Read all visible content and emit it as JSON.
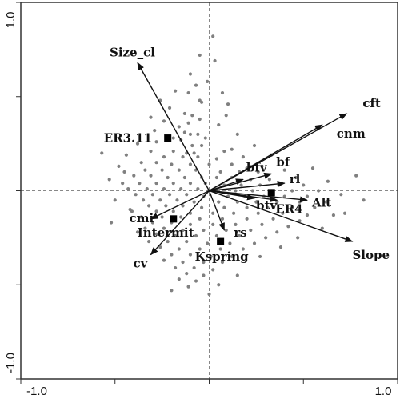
{
  "chart_data": {
    "type": "scatter",
    "xlim": [
      -1.0,
      1.0
    ],
    "ylim": [
      -1.0,
      1.0
    ],
    "x_ticks": [
      "-1.0",
      "1.0"
    ],
    "y_ticks": [
      "1.0",
      "-1.0"
    ],
    "grid": false,
    "zero_lines": true,
    "colors": {
      "points": "#808080",
      "arrows": "#111111",
      "axes": "#333333",
      "zero_lines": "#888888"
    },
    "vectors": [
      {
        "label": "Size_cl",
        "x": -0.38,
        "y": 0.68
      },
      {
        "label": "cft",
        "x": 0.73,
        "y": 0.41
      },
      {
        "label": "cnm",
        "x": 0.6,
        "y": 0.35
      },
      {
        "label": "bf",
        "x": 0.33,
        "y": 0.09
      },
      {
        "label": "bfv",
        "x": 0.18,
        "y": 0.06
      },
      {
        "label": "rl",
        "x": 0.4,
        "y": 0.04
      },
      {
        "label": "Alt",
        "x": 0.52,
        "y": -0.05
      },
      {
        "label": "btv",
        "x": 0.24,
        "y": -0.04
      },
      {
        "label": "ER4",
        "x": 0.36,
        "y": -0.05
      },
      {
        "label": "Slope",
        "x": 0.76,
        "y": -0.27
      },
      {
        "label": "rs",
        "x": 0.08,
        "y": -0.21
      },
      {
        "label": "cmi",
        "x": -0.31,
        "y": -0.15
      },
      {
        "label": "cv",
        "x": -0.31,
        "y": -0.34
      }
    ],
    "centroids": [
      {
        "label": "ER3.11",
        "x": -0.22,
        "y": 0.28
      },
      {
        "label": "Intermit",
        "x": -0.19,
        "y": -0.15
      },
      {
        "label": "Kspring",
        "x": 0.06,
        "y": -0.27
      },
      {
        "label": "ER4",
        "x": 0.33,
        "y": -0.01
      }
    ],
    "points": [
      [
        0.02,
        0.82
      ],
      [
        -0.05,
        0.72
      ],
      [
        0.03,
        0.69
      ],
      [
        -0.1,
        0.62
      ],
      [
        -0.18,
        0.53
      ],
      [
        -0.11,
        0.52
      ],
      [
        -0.05,
        0.48
      ],
      [
        -0.04,
        0.47
      ],
      [
        -0.13,
        0.41
      ],
      [
        -0.09,
        0.4
      ],
      [
        0.09,
        0.4
      ],
      [
        -0.05,
        0.38
      ],
      [
        -0.24,
        0.37
      ],
      [
        -0.11,
        0.36
      ],
      [
        -0.16,
        0.34
      ],
      [
        0.05,
        0.35
      ],
      [
        -0.13,
        0.31
      ],
      [
        -0.1,
        0.3
      ],
      [
        -0.06,
        0.3
      ],
      [
        -0.19,
        0.28
      ],
      [
        -0.02,
        0.28
      ],
      [
        -0.15,
        0.27
      ],
      [
        -0.28,
        0.26
      ],
      [
        -0.09,
        0.24
      ],
      [
        -0.04,
        0.24
      ],
      [
        0.12,
        0.22
      ],
      [
        -0.31,
        0.21
      ],
      [
        -0.19,
        0.21
      ],
      [
        -0.12,
        0.2
      ],
      [
        -0.08,
        0.2
      ],
      [
        0.08,
        0.21
      ],
      [
        -0.24,
        0.18
      ],
      [
        -0.14,
        0.18
      ],
      [
        -0.06,
        0.18
      ],
      [
        0.04,
        0.17
      ],
      [
        0.18,
        0.18
      ],
      [
        -0.36,
        0.15
      ],
      [
        -0.28,
        0.15
      ],
      [
        -0.2,
        0.14
      ],
      [
        -0.1,
        0.14
      ],
      [
        0.0,
        0.14
      ],
      [
        0.12,
        0.14
      ],
      [
        0.28,
        0.13
      ],
      [
        -0.34,
        0.11
      ],
      [
        -0.25,
        0.11
      ],
      [
        -0.16,
        0.11
      ],
      [
        -0.07,
        0.11
      ],
      [
        0.06,
        0.1
      ],
      [
        0.16,
        0.1
      ],
      [
        0.26,
        0.1
      ],
      [
        0.4,
        0.11
      ],
      [
        -0.4,
        0.08
      ],
      [
        -0.31,
        0.08
      ],
      [
        -0.22,
        0.07
      ],
      [
        -0.13,
        0.07
      ],
      [
        -0.04,
        0.07
      ],
      [
        0.04,
        0.07
      ],
      [
        0.12,
        0.07
      ],
      [
        0.22,
        0.06
      ],
      [
        0.32,
        0.06
      ],
      [
        0.46,
        0.07
      ],
      [
        -0.46,
        0.04
      ],
      [
        -0.37,
        0.04
      ],
      [
        -0.28,
        0.04
      ],
      [
        -0.19,
        0.04
      ],
      [
        -0.1,
        0.04
      ],
      [
        -0.02,
        0.04
      ],
      [
        0.08,
        0.03
      ],
      [
        0.17,
        0.03
      ],
      [
        0.27,
        0.03
      ],
      [
        0.37,
        0.03
      ],
      [
        0.5,
        0.03
      ],
      [
        -0.43,
        0.01
      ],
      [
        -0.33,
        0.01
      ],
      [
        -0.24,
        0.01
      ],
      [
        -0.15,
        0.01
      ],
      [
        -0.06,
        0.01
      ],
      [
        0.04,
        0.0
      ],
      [
        0.14,
        0.0
      ],
      [
        0.23,
        0.0
      ],
      [
        0.33,
        0.0
      ],
      [
        0.44,
        0.0
      ],
      [
        0.58,
        0.0
      ],
      [
        -0.39,
        -0.02
      ],
      [
        -0.3,
        -0.02
      ],
      [
        -0.21,
        -0.02
      ],
      [
        -0.12,
        -0.02
      ],
      [
        -0.03,
        -0.03
      ],
      [
        0.1,
        -0.03
      ],
      [
        0.19,
        -0.03
      ],
      [
        0.29,
        -0.03
      ],
      [
        0.4,
        -0.03
      ],
      [
        0.52,
        -0.03
      ],
      [
        -0.35,
        -0.05
      ],
      [
        -0.26,
        -0.05
      ],
      [
        -0.17,
        -0.05
      ],
      [
        -0.08,
        -0.06
      ],
      [
        0.05,
        -0.06
      ],
      [
        0.15,
        -0.06
      ],
      [
        0.25,
        -0.06
      ],
      [
        0.36,
        -0.06
      ],
      [
        0.48,
        -0.06
      ],
      [
        0.62,
        -0.06
      ],
      [
        -0.32,
        -0.08
      ],
      [
        -0.23,
        -0.08
      ],
      [
        -0.14,
        -0.08
      ],
      [
        -0.04,
        -0.09
      ],
      [
        0.08,
        -0.09
      ],
      [
        0.2,
        -0.09
      ],
      [
        0.31,
        -0.09
      ],
      [
        0.44,
        -0.09
      ],
      [
        0.56,
        -0.09
      ],
      [
        -0.41,
        -0.11
      ],
      [
        -0.28,
        -0.11
      ],
      [
        -0.19,
        -0.11
      ],
      [
        -0.1,
        -0.12
      ],
      [
        0.02,
        -0.12
      ],
      [
        0.13,
        -0.12
      ],
      [
        0.26,
        -0.12
      ],
      [
        0.39,
        -0.12
      ],
      [
        0.52,
        -0.13
      ],
      [
        0.66,
        -0.13
      ],
      [
        -0.36,
        -0.14
      ],
      [
        -0.25,
        -0.14
      ],
      [
        -0.15,
        -0.14
      ],
      [
        -0.05,
        -0.15
      ],
      [
        0.07,
        -0.15
      ],
      [
        0.2,
        -0.15
      ],
      [
        0.34,
        -0.15
      ],
      [
        0.48,
        -0.16
      ],
      [
        -0.3,
        -0.17
      ],
      [
        -0.2,
        -0.17
      ],
      [
        -0.1,
        -0.18
      ],
      [
        0.02,
        -0.18
      ],
      [
        0.14,
        -0.18
      ],
      [
        0.28,
        -0.18
      ],
      [
        0.42,
        -0.19
      ],
      [
        -0.34,
        -0.2
      ],
      [
        -0.24,
        -0.2
      ],
      [
        -0.14,
        -0.21
      ],
      [
        -0.03,
        -0.21
      ],
      [
        0.09,
        -0.21
      ],
      [
        0.22,
        -0.21
      ],
      [
        0.36,
        -0.22
      ],
      [
        -0.28,
        -0.23
      ],
      [
        -0.18,
        -0.24
      ],
      [
        -0.07,
        -0.24
      ],
      [
        0.04,
        -0.24
      ],
      [
        0.16,
        -0.24
      ],
      [
        0.3,
        -0.25
      ],
      [
        -0.32,
        -0.27
      ],
      [
        -0.22,
        -0.27
      ],
      [
        -0.12,
        -0.27
      ],
      [
        -0.01,
        -0.28
      ],
      [
        0.11,
        -0.28
      ],
      [
        0.24,
        -0.28
      ],
      [
        -0.26,
        -0.3
      ],
      [
        -0.16,
        -0.31
      ],
      [
        -0.05,
        -0.31
      ],
      [
        0.06,
        -0.31
      ],
      [
        0.18,
        -0.31
      ],
      [
        -0.2,
        -0.34
      ],
      [
        -0.1,
        -0.34
      ],
      [
        0.01,
        -0.35
      ],
      [
        0.12,
        -0.35
      ],
      [
        -0.24,
        -0.37
      ],
      [
        -0.14,
        -0.38
      ],
      [
        -0.03,
        -0.38
      ],
      [
        0.07,
        -0.38
      ],
      [
        -0.18,
        -0.41
      ],
      [
        -0.08,
        -0.41
      ],
      [
        0.02,
        -0.42
      ],
      [
        -0.12,
        -0.44
      ],
      [
        -0.03,
        -0.45
      ],
      [
        -0.16,
        -0.47
      ],
      [
        -0.07,
        -0.48
      ],
      [
        -0.11,
        -0.51
      ],
      [
        -0.2,
        -0.53
      ],
      [
        0.0,
        -0.55
      ],
      [
        -0.44,
        0.19
      ],
      [
        -0.5,
        -0.05
      ],
      [
        -0.48,
        0.13
      ],
      [
        -0.29,
        0.32
      ],
      [
        0.24,
        0.24
      ],
      [
        0.33,
        0.19
      ],
      [
        0.55,
        0.12
      ],
      [
        0.63,
        0.05
      ],
      [
        0.7,
        -0.02
      ],
      [
        0.6,
        -0.2
      ],
      [
        0.47,
        -0.25
      ],
      [
        0.72,
        -0.12
      ],
      [
        0.38,
        -0.3
      ],
      [
        0.27,
        -0.35
      ],
      [
        0.15,
        -0.45
      ],
      [
        0.05,
        -0.5
      ],
      [
        -0.38,
        -0.22
      ],
      [
        -0.42,
        -0.1
      ],
      [
        -0.45,
        0.1
      ],
      [
        -0.38,
        0.25
      ],
      [
        -0.21,
        0.44
      ],
      [
        -0.26,
        0.48
      ],
      [
        -0.01,
        0.58
      ],
      [
        0.07,
        0.52
      ],
      [
        0.15,
        0.3
      ],
      [
        0.2,
        0.12
      ],
      [
        -0.57,
        0.2
      ],
      [
        -0.53,
        0.06
      ],
      [
        -0.52,
        -0.17
      ],
      [
        0.78,
        0.08
      ],
      [
        0.82,
        -0.05
      ],
      [
        0.1,
        0.46
      ],
      [
        -0.07,
        0.56
      ],
      [
        -0.31,
        0.39
      ]
    ]
  }
}
